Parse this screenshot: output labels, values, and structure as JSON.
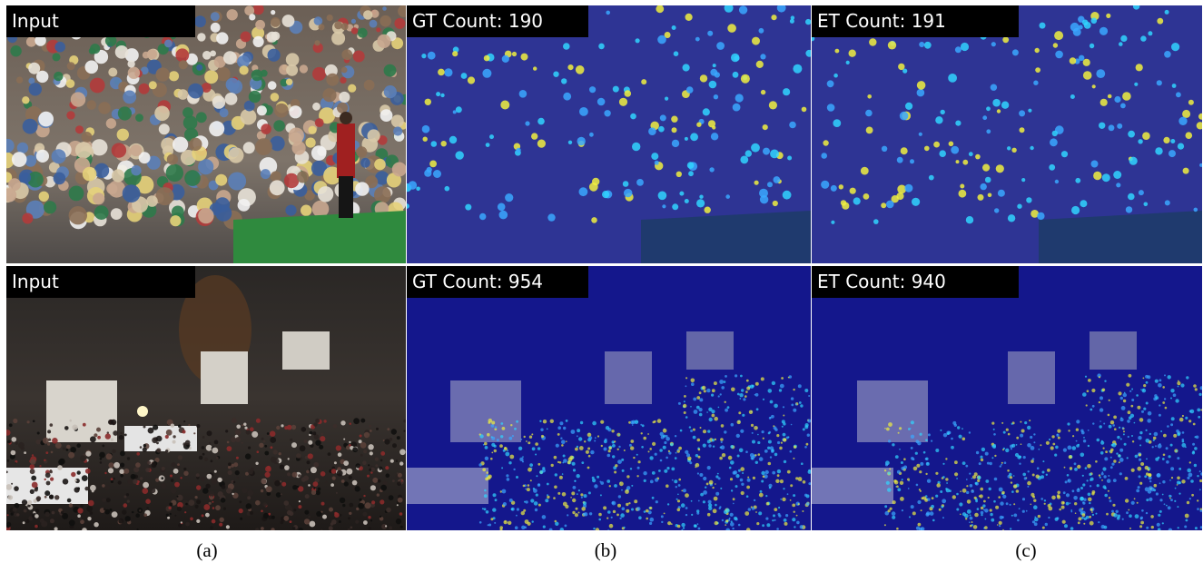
{
  "rows": [
    {
      "scene": "golf-crowd",
      "panels": [
        {
          "kind": "input",
          "label": "Input"
        },
        {
          "kind": "ground-truth",
          "label": "GT Count: 190"
        },
        {
          "kind": "estimate",
          "label": "ET Count: 191"
        }
      ]
    },
    {
      "scene": "night-crowd",
      "panels": [
        {
          "kind": "input",
          "label": "Input"
        },
        {
          "kind": "ground-truth",
          "label": "GT Count: 954"
        },
        {
          "kind": "estimate",
          "label": "ET Count: 940"
        }
      ]
    }
  ],
  "captions": [
    "(a)",
    "(b)",
    "(c)"
  ],
  "colors": {
    "label_background": "#000000",
    "label_text": "#ffffff",
    "density_low": "#1a1fb8",
    "density_mid": "#30d5ff",
    "density_high": "#f0f040"
  }
}
